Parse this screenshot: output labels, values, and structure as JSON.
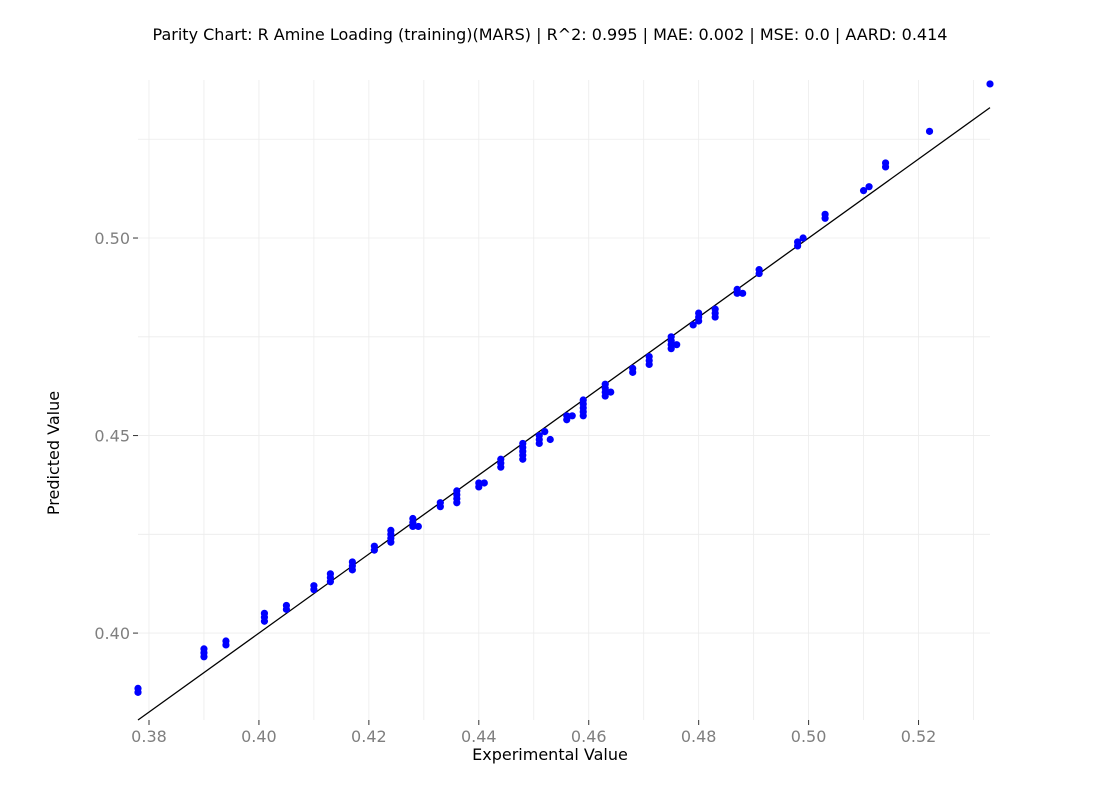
{
  "chart_data": {
    "type": "scatter",
    "title": "Parity Chart: R Amine Loading (training)(MARS) | R^2: 0.995 | MAE: 0.002 | MSE: 0.0 | AARD: 0.414",
    "xlabel": "Experimental Value",
    "ylabel": "Predicted Value",
    "xlim": [
      0.378,
      0.533
    ],
    "ylim": [
      0.378,
      0.54
    ],
    "grid": true,
    "legend": "none",
    "x_ticks": [
      "0.38",
      "0.40",
      "0.42",
      "0.44",
      "0.46",
      "0.48",
      "0.50",
      "0.52"
    ],
    "x_tick_values": [
      0.38,
      0.4,
      0.42,
      0.44,
      0.46,
      0.48,
      0.5,
      0.52
    ],
    "y_ticks": [
      "0.40",
      "0.45",
      "0.50"
    ],
    "y_tick_values": [
      0.4,
      0.45,
      0.5
    ],
    "parity_line": {
      "from": [
        0.378,
        0.378
      ],
      "to": [
        0.533,
        0.533
      ],
      "color": "#000000"
    },
    "series": [
      {
        "color": "#0000ff",
        "points": [
          [
            0.378,
            0.385
          ],
          [
            0.378,
            0.386
          ],
          [
            0.39,
            0.394
          ],
          [
            0.39,
            0.395
          ],
          [
            0.39,
            0.396
          ],
          [
            0.394,
            0.397
          ],
          [
            0.394,
            0.398
          ],
          [
            0.401,
            0.403
          ],
          [
            0.401,
            0.404
          ],
          [
            0.401,
            0.405
          ],
          [
            0.405,
            0.406
          ],
          [
            0.405,
            0.407
          ],
          [
            0.41,
            0.411
          ],
          [
            0.41,
            0.412
          ],
          [
            0.413,
            0.413
          ],
          [
            0.413,
            0.414
          ],
          [
            0.413,
            0.415
          ],
          [
            0.417,
            0.416
          ],
          [
            0.417,
            0.417
          ],
          [
            0.417,
            0.418
          ],
          [
            0.421,
            0.421
          ],
          [
            0.421,
            0.422
          ],
          [
            0.424,
            0.423
          ],
          [
            0.424,
            0.424
          ],
          [
            0.424,
            0.425
          ],
          [
            0.424,
            0.426
          ],
          [
            0.428,
            0.427
          ],
          [
            0.428,
            0.428
          ],
          [
            0.429,
            0.427
          ],
          [
            0.428,
            0.429
          ],
          [
            0.433,
            0.432
          ],
          [
            0.433,
            0.433
          ],
          [
            0.436,
            0.433
          ],
          [
            0.436,
            0.434
          ],
          [
            0.436,
            0.435
          ],
          [
            0.436,
            0.436
          ],
          [
            0.44,
            0.437
          ],
          [
            0.44,
            0.438
          ],
          [
            0.441,
            0.438
          ],
          [
            0.444,
            0.442
          ],
          [
            0.444,
            0.443
          ],
          [
            0.444,
            0.444
          ],
          [
            0.448,
            0.444
          ],
          [
            0.448,
            0.445
          ],
          [
            0.448,
            0.446
          ],
          [
            0.448,
            0.447
          ],
          [
            0.448,
            0.448
          ],
          [
            0.451,
            0.448
          ],
          [
            0.451,
            0.449
          ],
          [
            0.451,
            0.45
          ],
          [
            0.453,
            0.449
          ],
          [
            0.452,
            0.451
          ],
          [
            0.456,
            0.454
          ],
          [
            0.456,
            0.455
          ],
          [
            0.457,
            0.455
          ],
          [
            0.459,
            0.455
          ],
          [
            0.459,
            0.456
          ],
          [
            0.459,
            0.457
          ],
          [
            0.459,
            0.458
          ],
          [
            0.459,
            0.459
          ],
          [
            0.463,
            0.46
          ],
          [
            0.463,
            0.461
          ],
          [
            0.464,
            0.461
          ],
          [
            0.463,
            0.462
          ],
          [
            0.463,
            0.463
          ],
          [
            0.468,
            0.466
          ],
          [
            0.468,
            0.467
          ],
          [
            0.471,
            0.468
          ],
          [
            0.471,
            0.469
          ],
          [
            0.471,
            0.47
          ],
          [
            0.475,
            0.472
          ],
          [
            0.475,
            0.473
          ],
          [
            0.476,
            0.473
          ],
          [
            0.475,
            0.474
          ],
          [
            0.475,
            0.475
          ],
          [
            0.479,
            0.478
          ],
          [
            0.48,
            0.479
          ],
          [
            0.48,
            0.48
          ],
          [
            0.48,
            0.481
          ],
          [
            0.483,
            0.48
          ],
          [
            0.483,
            0.481
          ],
          [
            0.483,
            0.482
          ],
          [
            0.487,
            0.486
          ],
          [
            0.487,
            0.487
          ],
          [
            0.488,
            0.486
          ],
          [
            0.491,
            0.491
          ],
          [
            0.491,
            0.492
          ],
          [
            0.498,
            0.498
          ],
          [
            0.498,
            0.499
          ],
          [
            0.499,
            0.5
          ],
          [
            0.503,
            0.505
          ],
          [
            0.503,
            0.506
          ],
          [
            0.51,
            0.512
          ],
          [
            0.511,
            0.513
          ],
          [
            0.514,
            0.518
          ],
          [
            0.514,
            0.519
          ],
          [
            0.522,
            0.527
          ],
          [
            0.533,
            0.539
          ]
        ]
      }
    ]
  }
}
